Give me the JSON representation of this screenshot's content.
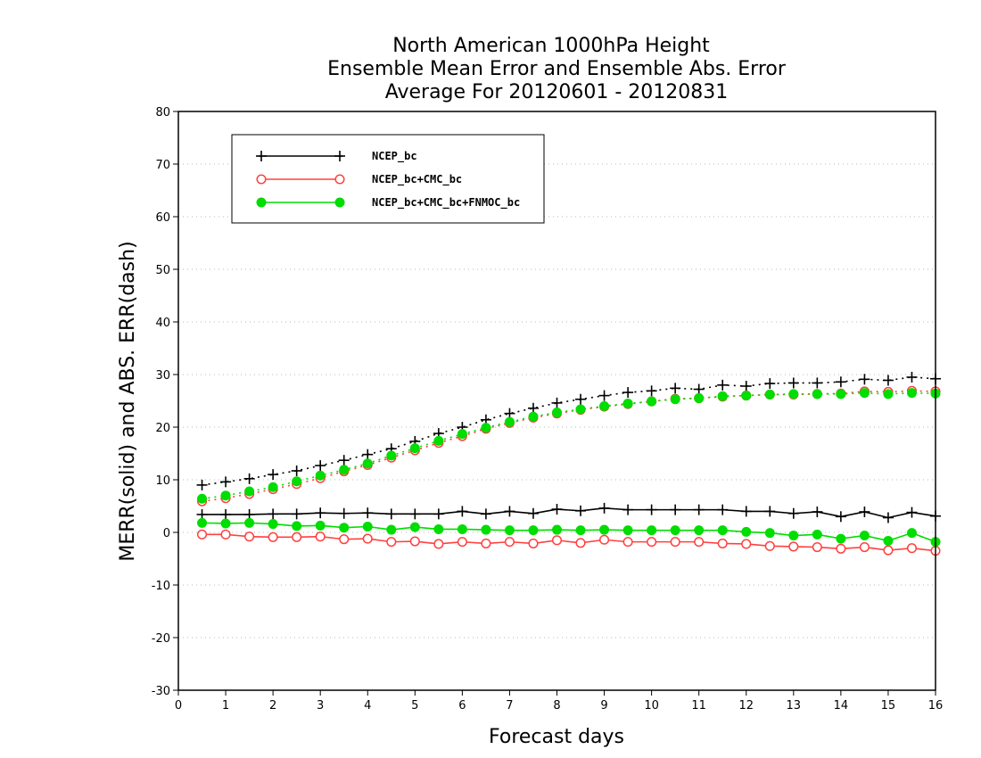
{
  "chart_data": {
    "type": "line",
    "title": [
      "North American 1000hPa Height",
      "Ensemble Mean Error and Ensemble Abs. Error",
      "Average For 20120601 - 20120831"
    ],
    "xlabel": "Forecast days",
    "ylabel": "MERR(solid) and ABS. ERR(dash)",
    "xlim": [
      0,
      16
    ],
    "ylim": [
      -30,
      80
    ],
    "xticks": [
      0,
      1,
      2,
      3,
      4,
      5,
      6,
      7,
      8,
      9,
      10,
      11,
      12,
      13,
      14,
      15,
      16
    ],
    "yticks": [
      -30,
      -20,
      -10,
      0,
      10,
      20,
      30,
      40,
      50,
      60,
      70,
      80
    ],
    "grid": "horizontal dotted",
    "legend_position": "top-left",
    "x": [
      0.5,
      1,
      1.5,
      2,
      2.5,
      3,
      3.5,
      4,
      4.5,
      5,
      5.5,
      6,
      6.5,
      7,
      7.5,
      8,
      8.5,
      9,
      9.5,
      10,
      10.5,
      11,
      11.5,
      12,
      12.5,
      13,
      13.5,
      14,
      14.5,
      15,
      15.5,
      16
    ],
    "series": [
      {
        "name": "NCEP_bc",
        "color": "#000000",
        "marker": "plus",
        "merr": [
          3.4,
          3.4,
          3.4,
          3.5,
          3.5,
          3.7,
          3.6,
          3.7,
          3.5,
          3.5,
          3.5,
          4.0,
          3.5,
          4.0,
          3.6,
          4.4,
          4.1,
          4.6,
          4.3,
          4.3,
          4.3,
          4.3,
          4.3,
          4.0,
          4.0,
          3.6,
          3.9,
          3.0,
          3.9,
          2.8,
          3.8,
          3.1
        ],
        "abs_err": [
          9.0,
          9.6,
          10.2,
          11.0,
          11.7,
          12.7,
          13.7,
          14.8,
          15.9,
          17.3,
          18.8,
          20.0,
          21.4,
          22.6,
          23.6,
          24.6,
          25.3,
          26.0,
          26.6,
          26.9,
          27.4,
          27.2,
          28.0,
          27.8,
          28.3,
          28.4,
          28.4,
          28.6,
          29.1,
          28.9,
          29.5,
          29.2
        ]
      },
      {
        "name": "NCEP_bc+CMC_bc",
        "color": "#ff4040",
        "marker": "open-circle",
        "merr": [
          -0.4,
          -0.4,
          -0.8,
          -0.9,
          -0.9,
          -0.8,
          -1.3,
          -1.2,
          -1.8,
          -1.7,
          -2.2,
          -1.8,
          -2.1,
          -1.8,
          -2.1,
          -1.5,
          -2.0,
          -1.4,
          -1.8,
          -1.8,
          -1.8,
          -1.8,
          -2.1,
          -2.2,
          -2.6,
          -2.7,
          -2.8,
          -3.1,
          -2.8,
          -3.4,
          -3.0,
          -3.5
        ],
        "abs_err": [
          5.9,
          6.5,
          7.3,
          8.2,
          9.2,
          10.3,
          11.6,
          12.8,
          14.2,
          15.6,
          17.0,
          18.3,
          19.7,
          20.8,
          21.8,
          22.6,
          23.3,
          23.9,
          24.4,
          24.9,
          25.4,
          25.5,
          25.8,
          26.0,
          26.2,
          26.2,
          26.3,
          26.4,
          26.8,
          26.7,
          26.9,
          26.8
        ]
      },
      {
        "name": "NCEP_bc+CMC_bc+FNMOC_bc",
        "color": "#00dd00",
        "marker": "filled-circle",
        "merr": [
          1.8,
          1.7,
          1.8,
          1.6,
          1.2,
          1.3,
          0.9,
          1.1,
          0.5,
          1.0,
          0.6,
          0.6,
          0.5,
          0.4,
          0.4,
          0.5,
          0.4,
          0.5,
          0.4,
          0.4,
          0.4,
          0.4,
          0.4,
          0.1,
          -0.1,
          -0.6,
          -0.4,
          -1.2,
          -0.6,
          -1.6,
          -0.1,
          -1.8
        ],
        "abs_err": [
          6.4,
          7.0,
          7.8,
          8.6,
          9.7,
          10.8,
          11.9,
          13.1,
          14.6,
          16.0,
          17.4,
          18.7,
          19.9,
          21.0,
          22.0,
          22.8,
          23.4,
          24.0,
          24.5,
          24.9,
          25.3,
          25.5,
          25.9,
          26.0,
          26.2,
          26.3,
          26.3,
          26.3,
          26.5,
          26.3,
          26.5,
          26.4
        ]
      }
    ]
  }
}
